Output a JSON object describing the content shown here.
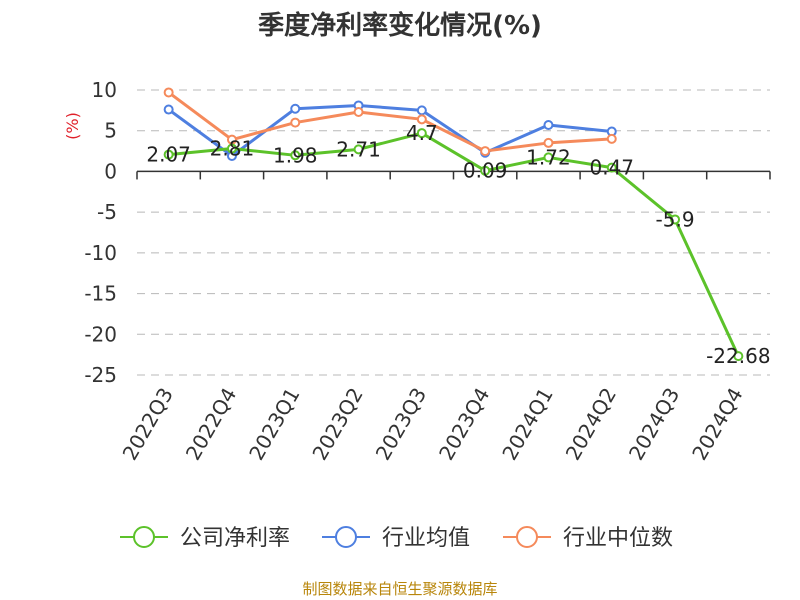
{
  "chart_data": {
    "type": "line",
    "title": "季度净利率变化情况(%)",
    "ylabel": "(%)",
    "categories": [
      "2022Q3",
      "2022Q4",
      "2023Q1",
      "2023Q2",
      "2023Q3",
      "2023Q4",
      "2024Q1",
      "2024Q2",
      "2024Q3",
      "2024Q4"
    ],
    "ylim": [
      -25,
      10
    ],
    "yticks": [
      10,
      5,
      0,
      -5,
      -10,
      -15,
      -20,
      -25
    ],
    "grid": true,
    "legend_position": "bottom",
    "series": [
      {
        "name": "公司净利率",
        "color": "#5cc22a",
        "values": [
          2.07,
          2.81,
          1.98,
          2.71,
          4.7,
          0.09,
          1.72,
          0.47,
          -5.9,
          -22.68
        ],
        "labels": [
          "2.07",
          "2.81",
          "1.98",
          "2.71",
          "4.7",
          "0.09",
          "1.72",
          "0.47",
          "-5.9",
          "-22.68"
        ]
      },
      {
        "name": "行业均值",
        "color": "#4e7fe0",
        "values": [
          7.6,
          1.9,
          7.7,
          8.1,
          7.5,
          2.3,
          5.7,
          4.9,
          null,
          null
        ]
      },
      {
        "name": "行业中位数",
        "color": "#f58a5b",
        "values": [
          9.7,
          3.9,
          6.0,
          7.3,
          6.4,
          2.5,
          3.5,
          4.0,
          null,
          null
        ]
      }
    ]
  },
  "source": "制图数据来自恒生聚源数据库"
}
